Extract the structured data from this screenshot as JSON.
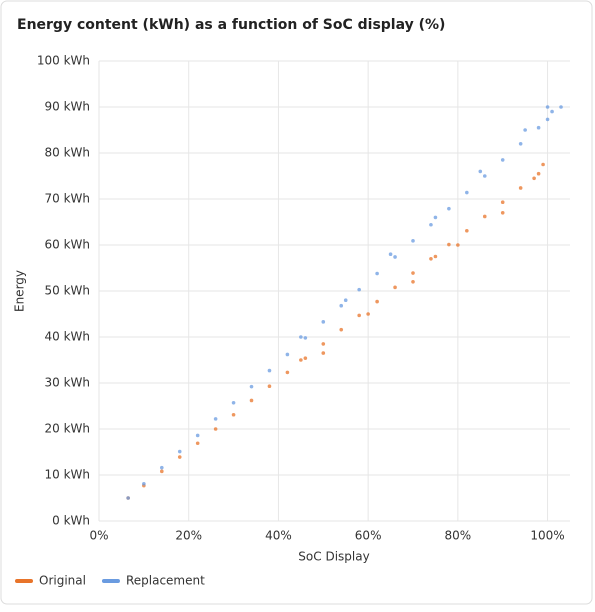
{
  "chart_data": {
    "type": "scatter",
    "title": "Energy content (kWh) as a function of SoC display (%)",
    "x_label": "SoC Display",
    "y_label": "Energy",
    "xlim": [
      0,
      105
    ],
    "ylim": [
      0,
      100
    ],
    "xticks": [
      {
        "value": 0,
        "label": "0%"
      },
      {
        "value": 20,
        "label": "20%"
      },
      {
        "value": 40,
        "label": "40%"
      },
      {
        "value": 60,
        "label": "60%"
      },
      {
        "value": 80,
        "label": "80%"
      },
      {
        "value": 100,
        "label": "100%"
      }
    ],
    "yticks": [
      {
        "value": 0,
        "label": "0 kWh"
      },
      {
        "value": 10,
        "label": "10 kWh"
      },
      {
        "value": 20,
        "label": "20 kWh"
      },
      {
        "value": 30,
        "label": "30 kWh"
      },
      {
        "value": 40,
        "label": "40 kWh"
      },
      {
        "value": 50,
        "label": "50 kWh"
      },
      {
        "value": 60,
        "label": "60 kWh"
      },
      {
        "value": 70,
        "label": "70 kWh"
      },
      {
        "value": 80,
        "label": "80 kWh"
      },
      {
        "value": 90,
        "label": "90 kWh"
      },
      {
        "value": 100,
        "label": "100 kWh"
      }
    ],
    "grid": true,
    "legend": "bottom-left",
    "series": [
      {
        "name": "Original",
        "color": "#e8742a",
        "x": [
          6.5,
          10,
          14,
          18,
          22,
          26,
          30,
          34,
          38,
          42,
          46,
          50,
          54,
          58,
          62,
          66,
          70,
          74,
          78,
          82,
          86,
          90,
          94,
          98,
          99,
          50,
          60,
          70,
          80,
          90,
          97,
          45,
          75
        ],
        "values": [
          5,
          7.7,
          10.8,
          13.9,
          16.9,
          20,
          23.1,
          26.2,
          29.3,
          32.3,
          35.4,
          38.5,
          41.6,
          44.7,
          47.7,
          50.8,
          53.9,
          57,
          60.1,
          63.1,
          66.2,
          69.3,
          72.4,
          75.5,
          77.5,
          36.5,
          45,
          52,
          60,
          67,
          74.5,
          35,
          57.5
        ]
      },
      {
        "name": "Replacement",
        "color": "#6a9be0",
        "x": [
          6.5,
          10,
          14,
          18,
          22,
          26,
          30,
          34,
          38,
          42,
          46,
          50,
          54,
          58,
          62,
          66,
          70,
          74,
          78,
          82,
          86,
          90,
          94,
          98,
          100,
          100,
          103,
          101,
          95,
          85,
          75,
          65,
          45,
          55
        ],
        "values": [
          5,
          8.1,
          11.6,
          15.1,
          18.6,
          22.2,
          25.7,
          29.2,
          32.7,
          36.2,
          39.8,
          43.3,
          46.8,
          50.3,
          53.8,
          57.4,
          60.9,
          64.4,
          67.9,
          71.4,
          75,
          78.5,
          82,
          85.5,
          87.3,
          90,
          90,
          89,
          85,
          76,
          66,
          58,
          40,
          48
        ]
      }
    ]
  }
}
